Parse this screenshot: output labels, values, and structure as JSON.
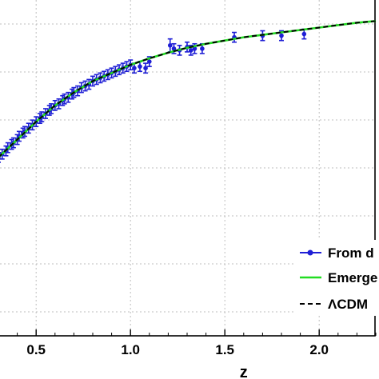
{
  "chart_data": {
    "type": "scatter",
    "xlabel": "z",
    "xlim": [
      0.3,
      2.3
    ],
    "x_ticks": [
      "0.5",
      "1.0",
      "1.5",
      "2.0"
    ],
    "x_tick_values": [
      0.5,
      1.0,
      1.5,
      2.0
    ],
    "grid": true,
    "legend_position": "bottom-right",
    "series": [
      {
        "name": "From d",
        "kind": "points-with-errorbars",
        "color": "#1f1fd6",
        "x": [
          0.3,
          0.32,
          0.34,
          0.35,
          0.37,
          0.38,
          0.4,
          0.41,
          0.43,
          0.44,
          0.46,
          0.48,
          0.5,
          0.52,
          0.53,
          0.55,
          0.57,
          0.58,
          0.6,
          0.62,
          0.64,
          0.65,
          0.67,
          0.69,
          0.7,
          0.72,
          0.74,
          0.76,
          0.78,
          0.8,
          0.82,
          0.84,
          0.86,
          0.88,
          0.9,
          0.92,
          0.94,
          0.96,
          0.98,
          1.0,
          1.02,
          1.05,
          1.08,
          1.1,
          1.21,
          1.23,
          1.26,
          1.3,
          1.32,
          1.34,
          1.38,
          1.55,
          1.7,
          1.8,
          1.92
        ],
        "y": [
          0.05,
          0.07,
          0.09,
          0.11,
          0.13,
          0.14,
          0.16,
          0.18,
          0.2,
          0.21,
          0.23,
          0.25,
          0.27,
          0.29,
          0.3,
          0.32,
          0.34,
          0.35,
          0.37,
          0.38,
          0.4,
          0.41,
          0.42,
          0.44,
          0.45,
          0.46,
          0.48,
          0.49,
          0.5,
          0.52,
          0.53,
          0.54,
          0.55,
          0.56,
          0.57,
          0.58,
          0.59,
          0.6,
          0.61,
          0.62,
          0.6,
          0.61,
          0.6,
          0.64,
          0.74,
          0.72,
          0.71,
          0.73,
          0.71,
          0.72,
          0.72,
          0.79,
          0.8,
          0.8,
          0.81
        ],
        "yerr": [
          0.03,
          0.03,
          0.03,
          0.03,
          0.03,
          0.03,
          0.03,
          0.03,
          0.03,
          0.03,
          0.03,
          0.03,
          0.03,
          0.03,
          0.03,
          0.03,
          0.03,
          0.03,
          0.03,
          0.03,
          0.03,
          0.03,
          0.03,
          0.03,
          0.03,
          0.03,
          0.03,
          0.03,
          0.03,
          0.03,
          0.03,
          0.03,
          0.03,
          0.03,
          0.03,
          0.03,
          0.03,
          0.03,
          0.03,
          0.03,
          0.03,
          0.03,
          0.03,
          0.03,
          0.04,
          0.03,
          0.03,
          0.03,
          0.03,
          0.03,
          0.03,
          0.03,
          0.03,
          0.03,
          0.03
        ]
      },
      {
        "name": "Emerge",
        "kind": "line",
        "color": "#22dd22",
        "x": [
          0.3,
          0.4,
          0.5,
          0.6,
          0.7,
          0.8,
          0.9,
          1.0,
          1.1,
          1.2,
          1.3,
          1.4,
          1.5,
          1.6,
          1.7,
          1.8,
          1.9,
          2.0,
          2.1,
          2.2,
          2.3
        ],
        "y": [
          0.05,
          0.16,
          0.27,
          0.37,
          0.45,
          0.52,
          0.57,
          0.62,
          0.66,
          0.695,
          0.725,
          0.75,
          0.77,
          0.79,
          0.805,
          0.82,
          0.835,
          0.85,
          0.865,
          0.88,
          0.89
        ]
      },
      {
        "name": "ΛCDM",
        "kind": "dashed-line",
        "color": "#000000",
        "x": [
          0.3,
          0.4,
          0.5,
          0.6,
          0.7,
          0.8,
          0.9,
          1.0,
          1.1,
          1.2,
          1.3,
          1.4,
          1.5,
          1.6,
          1.7,
          1.8,
          1.9,
          2.0,
          2.1,
          2.2,
          2.3
        ],
        "y": [
          0.05,
          0.16,
          0.27,
          0.37,
          0.45,
          0.52,
          0.57,
          0.62,
          0.66,
          0.695,
          0.725,
          0.75,
          0.77,
          0.79,
          0.805,
          0.82,
          0.835,
          0.85,
          0.865,
          0.88,
          0.89
        ]
      }
    ]
  }
}
